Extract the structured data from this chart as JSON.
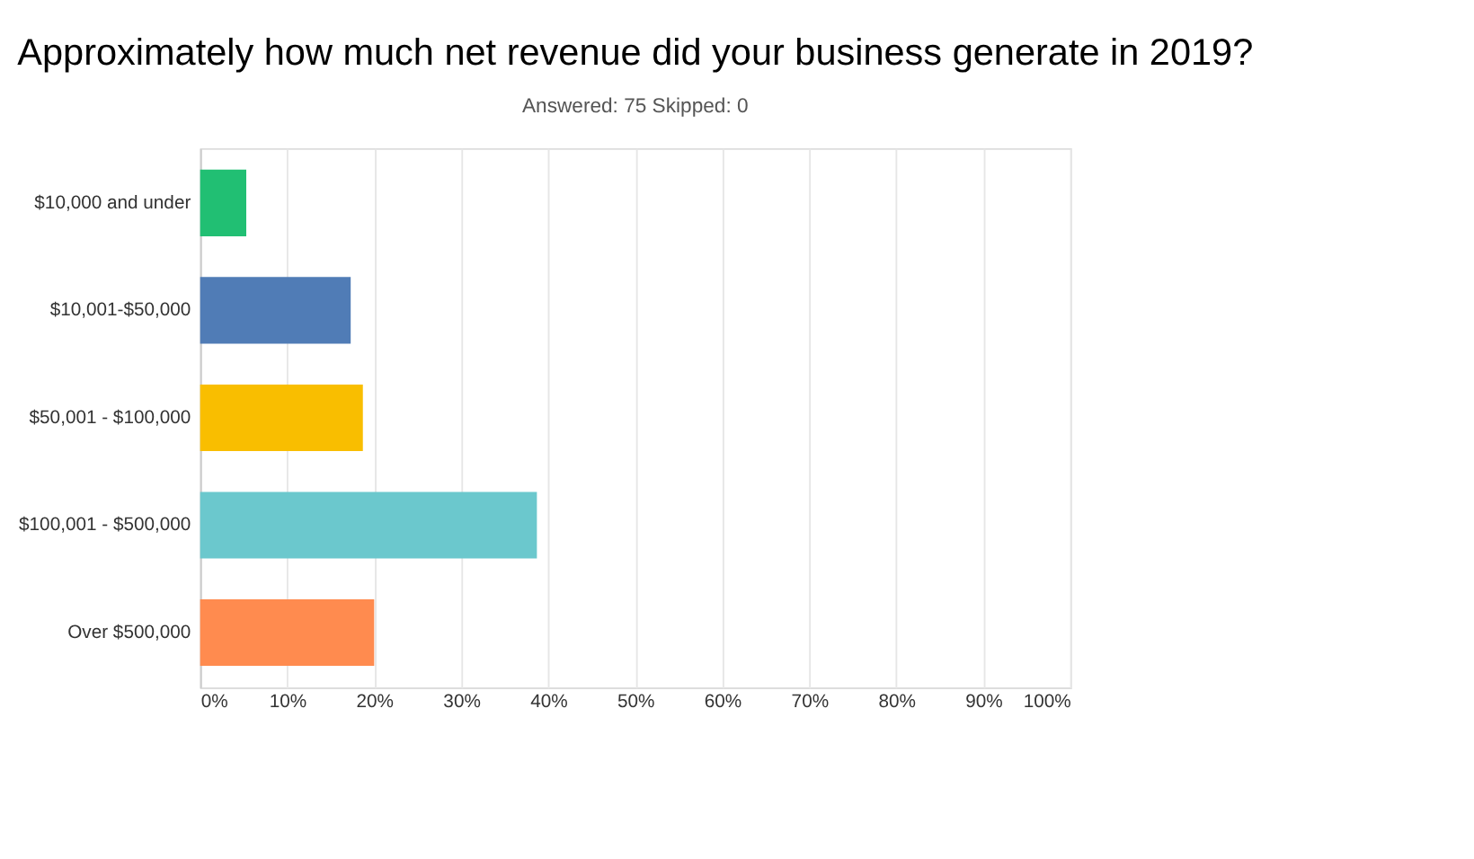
{
  "chart_data": {
    "type": "bar",
    "orientation": "horizontal",
    "title": "Approximately how much net revenue did your business generate in 2019?",
    "subtitle": "Answered: 75    Skipped: 0",
    "categories": [
      "$10,000 and under",
      "$10,001-$50,000",
      "$50,001 - $100,000",
      "$100,001 - $500,000",
      "Over $500,000"
    ],
    "values": [
      5.3,
      17.3,
      18.7,
      38.7,
      20.0
    ],
    "colors": [
      "#21bf73",
      "#507cb6",
      "#f9be00",
      "#6bc8cd",
      "#ff8b4f"
    ],
    "xlim": [
      0,
      100
    ],
    "xticks": [
      {
        "value": 0,
        "label": "0%"
      },
      {
        "value": 10,
        "label": "10%"
      },
      {
        "value": 20,
        "label": "20%"
      },
      {
        "value": 30,
        "label": "30%"
      },
      {
        "value": 40,
        "label": "40%"
      },
      {
        "value": 50,
        "label": "50%"
      },
      {
        "value": 60,
        "label": "60%"
      },
      {
        "value": 70,
        "label": "70%"
      },
      {
        "value": 80,
        "label": "80%"
      },
      {
        "value": 90,
        "label": "90%"
      },
      {
        "value": 100,
        "label": "100%"
      }
    ],
    "grid": "x"
  }
}
